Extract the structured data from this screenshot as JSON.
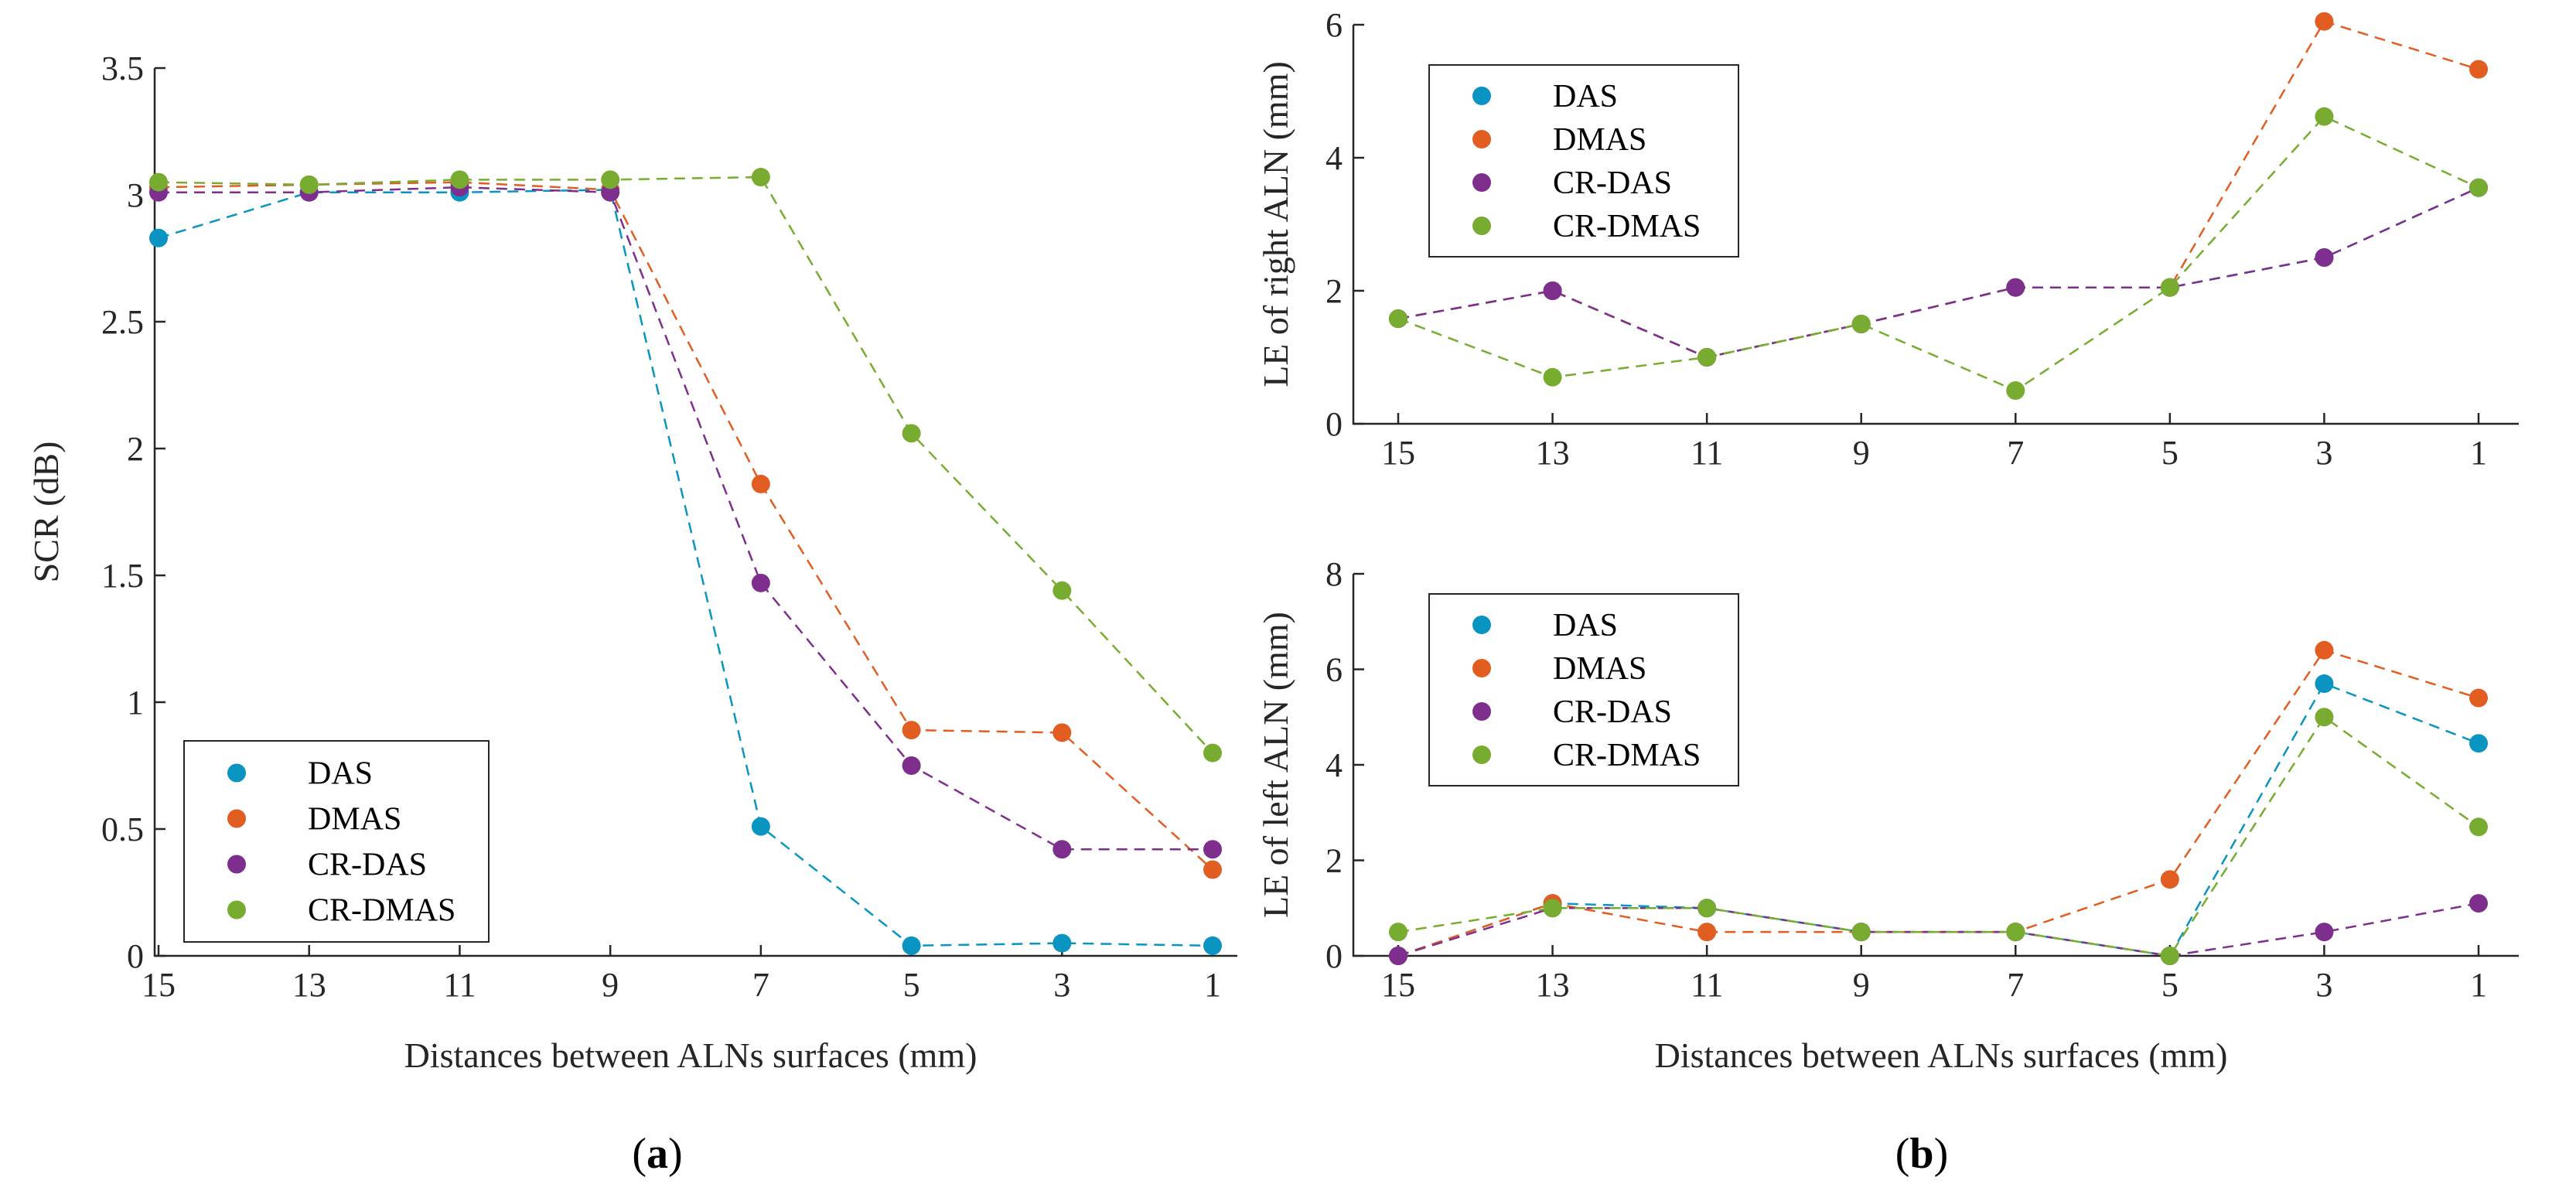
{
  "colors": {
    "DAS": "#0a94c1",
    "DMAS": "#e25d22",
    "CR-DAS": "#7e2f8e",
    "CR-DMAS": "#77ac30"
  },
  "chart_data": [
    {
      "id": "a",
      "type": "line",
      "caption": "a",
      "xlabel": "Distances between ALNs surfaces (mm)",
      "ylabel": "SCR (dB)",
      "categories": [
        "15",
        "13",
        "11",
        "9",
        "7",
        "5",
        "3",
        "1"
      ],
      "ylim": [
        0,
        3.5
      ],
      "yticks": [
        "0",
        "0.5",
        "1",
        "1.5",
        "2",
        "2.5",
        "3",
        "3.5"
      ],
      "legend_position": "bottom-left",
      "series": [
        {
          "name": "DAS",
          "values": [
            2.83,
            3.01,
            3.01,
            3.02,
            0.51,
            0.04,
            0.05,
            0.04
          ]
        },
        {
          "name": "DMAS",
          "values": [
            3.03,
            3.04,
            3.05,
            3.02,
            1.86,
            0.89,
            0.88,
            0.34
          ]
        },
        {
          "name": "CR-DAS",
          "values": [
            3.01,
            3.01,
            3.03,
            3.01,
            1.47,
            0.75,
            0.42,
            0.42
          ]
        },
        {
          "name": "CR-DMAS",
          "values": [
            3.05,
            3.04,
            3.06,
            3.06,
            3.07,
            2.06,
            1.44,
            0.8
          ]
        }
      ]
    },
    {
      "id": "b-top",
      "type": "line",
      "caption": "b",
      "xlabel": "",
      "ylabel": "LE of right ALN (mm)",
      "categories": [
        "15",
        "13",
        "11",
        "9",
        "7",
        "5",
        "3",
        "1"
      ],
      "ylim": [
        0,
        6
      ],
      "yticks": [
        "0",
        "2",
        "4",
        "6"
      ],
      "legend_position": "top-left",
      "series": [
        {
          "name": "DAS",
          "values": [
            1.58,
            2.0,
            1.0,
            1.5,
            2.05,
            2.05,
            2.5,
            3.55
          ]
        },
        {
          "name": "DMAS",
          "values": [
            1.58,
            2.0,
            1.0,
            1.5,
            2.05,
            2.05,
            6.05,
            5.33
          ]
        },
        {
          "name": "CR-DAS",
          "values": [
            1.58,
            2.0,
            1.0,
            1.5,
            2.05,
            2.05,
            2.5,
            3.55
          ]
        },
        {
          "name": "CR-DMAS",
          "values": [
            1.58,
            0.7,
            1.0,
            1.5,
            0.5,
            2.05,
            4.62,
            3.55
          ]
        }
      ]
    },
    {
      "id": "b-bottom",
      "type": "line",
      "caption": "b",
      "xlabel": "Distances between ALNs surfaces (mm)",
      "ylabel": "LE of left ALN (mm)",
      "categories": [
        "15",
        "13",
        "11",
        "9",
        "7",
        "5",
        "3",
        "1"
      ],
      "ylim": [
        0,
        8
      ],
      "yticks": [
        "0",
        "2",
        "4",
        "6",
        "8"
      ],
      "legend_position": "top-left",
      "series": [
        {
          "name": "DAS",
          "values": [
            0.0,
            1.1,
            1.0,
            0.5,
            0.5,
            0.0,
            5.7,
            4.45
          ]
        },
        {
          "name": "DMAS",
          "values": [
            0.0,
            1.1,
            0.5,
            0.5,
            0.5,
            1.6,
            6.4,
            5.4
          ]
        },
        {
          "name": "CR-DAS",
          "values": [
            0.0,
            1.0,
            1.0,
            0.5,
            0.5,
            0.0,
            0.5,
            1.1
          ]
        },
        {
          "name": "CR-DMAS",
          "values": [
            0.5,
            1.0,
            1.0,
            0.5,
            0.5,
            0.0,
            5.0,
            2.7
          ]
        }
      ]
    }
  ]
}
